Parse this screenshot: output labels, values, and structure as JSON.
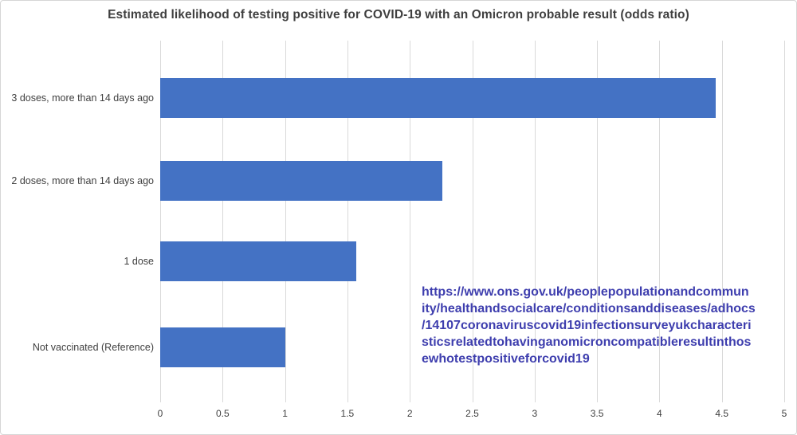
{
  "chart_data": {
    "type": "bar",
    "orientation": "horizontal",
    "title": "Estimated likelihood of testing positive for COVID-19 with an Omicron probable result (odds ratio)",
    "categories": [
      "3 doses, more than 14 days ago",
      "2 doses, more than 14 days ago",
      "1 dose",
      "Not vaccinated (Reference)"
    ],
    "values": [
      4.45,
      2.26,
      1.57,
      1.0
    ],
    "xlabel": "",
    "ylabel": "",
    "xlim": [
      0,
      5
    ],
    "x_ticks": [
      "0",
      "0.5",
      "1",
      "1.5",
      "2",
      "2.5",
      "3",
      "3.5",
      "4",
      "4.5",
      "5"
    ],
    "grid": "vertical",
    "legend": "none",
    "bar_color": "#4472C4",
    "gridline_color": "#D9D9D9"
  },
  "annotation": {
    "url": "https://www.ons.gov.uk/peoplepopulationandcommunity/healthandsocialcare/conditionsanddiseases/adhocs/14107coronaviruscovid19infectionsurveyukcharacteristicsrelatedtohavinganomicroncompatibleresultinthosewhotestpositiveforcovid19",
    "url_lines": [
      "https://www.ons.gov.uk/peoplepopulationandcommun",
      "ity/healthandsocialcare/conditionsanddiseases/adhocs",
      "/14107coronaviruscovid19infectionsurveyukcharacteri",
      "sticsrelatedtohavinganomicroncompatibleresultinthos",
      "ewhotestpositiveforcovid19"
    ],
    "link_color": "#3E3EAE"
  }
}
